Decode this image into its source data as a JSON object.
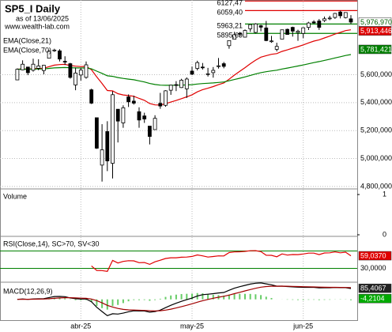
{
  "header": {
    "title": "SP5_I Daily",
    "asof": "as of 13/06/2025",
    "site": "www.wealth-lab.com"
  },
  "chart_data": {
    "type": "candlestick",
    "candles": {
      "open": [
        5563,
        5635,
        5655,
        5632,
        5646,
        5630,
        5718,
        5775,
        5771,
        5696,
        5679,
        5527,
        5598,
        5581,
        5492,
        5292,
        4953,
        5193,
        4966,
        5353,
        5255,
        5441,
        5411,
        5335,
        5305,
        5232,
        5207,
        5395,
        5381,
        5489,
        5529,
        5508,
        5499,
        5626,
        5645,
        5655,
        5605,
        5615,
        5663,
        5679,
        5808,
        5854,
        5896,
        5869,
        5929,
        5903,
        5951,
        5935,
        5842,
        5782,
        5855,
        5925,
        5939,
        5903,
        5896,
        5939,
        5978,
        5985,
        5988,
        6005,
        6010,
        6049,
        6009,
        6000
      ],
      "high": [
        5645,
        5703,
        5655,
        5715,
        5711,
        5670,
        5775,
        5786,
        5783,
        5732,
        5685,
        5651,
        5650,
        5695,
        5500,
        5292,
        5246,
        5267,
        5481,
        5353,
        5381,
        5459,
        5450,
        5367,
        5328,
        5232,
        5310,
        5470,
        5489,
        5528,
        5554,
        5571,
        5581,
        5658,
        5700,
        5684,
        5649,
        5655,
        5720,
        5691,
        5846,
        5907,
        5906,
        5924,
        5959,
        5969,
        5957,
        5985,
        5878,
        5829,
        5922,
        5930,
        5944,
        5922,
        5940,
        5979,
        5990,
        5999,
        6016,
        6022,
        6043,
        6059,
        6045,
        6027
      ],
      "low": [
        5563,
        5632,
        5597,
        5622,
        5632,
        5603,
        5718,
        5764,
        5695,
        5670,
        5572,
        5489,
        5558,
        5572,
        5390,
        5069,
        4835,
        4910,
        4857,
        5115,
        5220,
        5369,
        5386,
        5220,
        5255,
        5101,
        5207,
        5356,
        5371,
        5456,
        5483,
        5505,
        5434,
        5597,
        5631,
        5637,
        5587,
        5579,
        5644,
        5646,
        5786,
        5854,
        5868,
        5867,
        5907,
        5896,
        5911,
        5840,
        5829,
        5767,
        5855,
        5886,
        5873,
        5843,
        5862,
        5920,
        5966,
        5921,
        5978,
        5991,
        6000,
        6003,
        6003,
        5963
      ],
      "close": [
        5638.94,
        5675.12,
        5614.66,
        5675.29,
        5662.89,
        5667.56,
        5767.57,
        5776.65,
        5712.2,
        5693.31,
        5580.94,
        5611.85,
        5633.07,
        5670.97,
        5396.52,
        5074.08,
        5062.25,
        4982.77,
        5456.9,
        5268.05,
        5363.36,
        5405.97,
        5396.63,
        5275.7,
        5282.7,
        5158.2,
        5287.76,
        5375.86,
        5484.77,
        5525.21,
        5528.75,
        5560.83,
        5569.06,
        5604.14,
        5686.67,
        5650.38,
        5606.91,
        5631.28,
        5663.94,
        5659.91,
        5844.19,
        5886.55,
        5892.58,
        5916.93,
        5958.38,
        5963.6,
        5940.46,
        5844.61,
        5842.01,
        5802.82,
        5921.54,
        5888.55,
        5912.17,
        5911.69,
        5935.94,
        5970.37,
        5970.81,
        5939.3,
        6000.36,
        6005.88,
        6038.81,
        6022.24,
        6045.26,
        5976.97
      ]
    },
    "ylim": [
      4788,
      6135
    ],
    "yticks": [
      {
        "value": 4800,
        "label": "4,800,000"
      },
      {
        "value": 5000,
        "label": "5,000,000"
      },
      {
        "value": 5200,
        "label": "5,200,000"
      },
      {
        "value": 5400,
        "label": "5,400,000"
      },
      {
        "value": 5600,
        "label": "5,600,000"
      }
    ],
    "xticks": [
      {
        "value": 12,
        "label": "abr-25"
      },
      {
        "value": 33,
        "label": "may-25"
      },
      {
        "value": 54,
        "label": "jun-25"
      }
    ],
    "last_close": {
      "value": 5976.97,
      "label": "5,976,970"
    },
    "levels": [
      {
        "value": 6127.47,
        "label": "6127,47",
        "color": "#e00000"
      },
      {
        "value": 6059.4,
        "label": "6059,40",
        "color": "#e00000"
      },
      {
        "value": 5963.21,
        "label": "5963,21",
        "color": "#008000"
      },
      {
        "value": 5895.69,
        "label": "5895,69",
        "color": "#008000"
      }
    ],
    "ema": [
      {
        "name": "EMA(Close,21)",
        "period": 21,
        "color": "#e00000",
        "last": {
          "value": 5913.446,
          "label": "5,913,446"
        }
      },
      {
        "name": "EMA(Close,70)",
        "period": 70,
        "color": "#008000",
        "last": {
          "value": 5781.421,
          "label": "5,781,421"
        }
      }
    ],
    "volume": {
      "title": "Volume",
      "ylim": [
        0,
        1.1
      ],
      "yticks": [
        0,
        1
      ]
    },
    "rsi": {
      "title": "RSI(Close,14), SC>70, SV<30",
      "period": 14,
      "color": "#e00000",
      "ylim": [
        0,
        100
      ],
      "levels": [
        70,
        {
          "value": 30,
          "label": "30,0000"
        }
      ],
      "last": {
        "value": 59.037,
        "label": "59,0370"
      }
    },
    "macd": {
      "title": "MACD(12,26,9)",
      "fast": 12,
      "slow": 26,
      "signal": 9,
      "ylim": [
        -160,
        120
      ],
      "last_macd": {
        "value": 85.4067,
        "label": "85,4067"
      },
      "last_hist": {
        "value": -4.2104,
        "label": "-4,2104"
      }
    }
  }
}
